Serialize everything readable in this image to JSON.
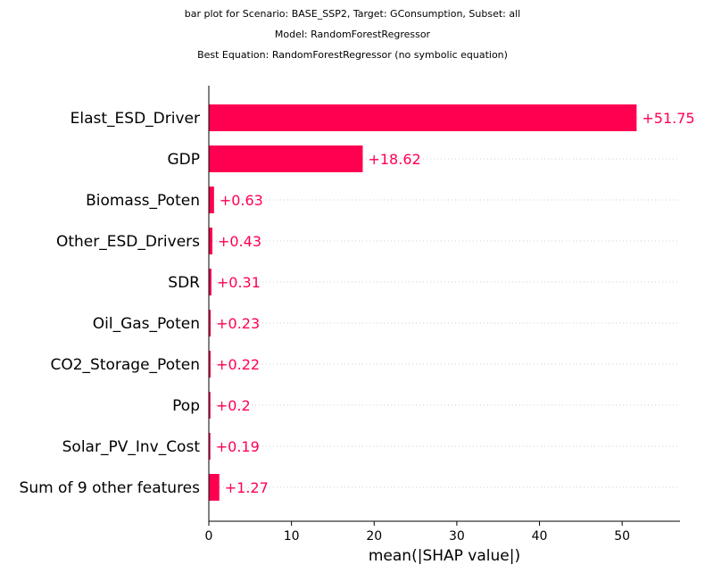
{
  "header": {
    "title_line_1": "bar plot for Scenario: BASE_SSP2, Target: GConsumption, Subset: all",
    "title_line_2": "Model: RandomForestRegressor",
    "title_line_3": "Best Equation: RandomForestRegressor (no symbolic equation)"
  },
  "chart_data": {
    "type": "bar",
    "orientation": "horizontal",
    "title": "bar plot for Scenario: BASE_SSP2, Target: GConsumption, Subset: all",
    "subtitle": [
      "Model: RandomForestRegressor",
      "Best Equation: RandomForestRegressor (no symbolic equation)"
    ],
    "xlabel": "mean(|SHAP value|)",
    "ylabel": "",
    "categories": [
      "Elast_ESD_Driver",
      "GDP",
      "Biomass_Poten",
      "Other_ESD_Drivers",
      "SDR",
      "Oil_Gas_Poten",
      "CO2_Storage_Poten",
      "Pop",
      "Solar_PV_Inv_Cost",
      "Sum of 9 other features"
    ],
    "values": [
      51.75,
      18.62,
      0.63,
      0.43,
      0.31,
      0.23,
      0.22,
      0.2,
      0.19,
      1.27
    ],
    "value_labels": [
      "+51.75",
      "+18.62",
      "+0.63",
      "+0.43",
      "+0.31",
      "+0.23",
      "+0.22",
      "+0.2",
      "+0.19",
      "+1.27"
    ],
    "xticks": [
      0,
      10,
      20,
      30,
      40,
      50
    ],
    "xtick_labels": [
      "0",
      "10",
      "20",
      "30",
      "40",
      "50"
    ],
    "xlim": [
      0,
      57
    ],
    "bar_color": "#ff0051",
    "grid": "dotted row guides"
  }
}
